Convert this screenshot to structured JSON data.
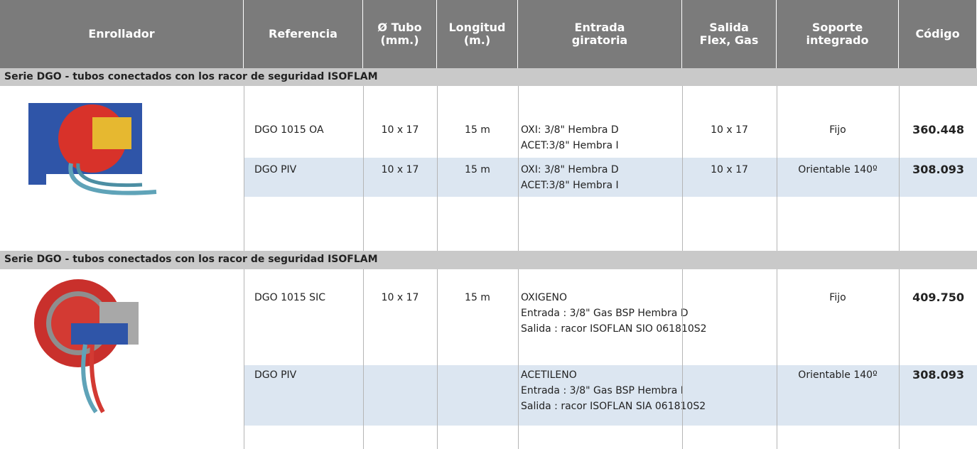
{
  "header": [
    [
      "Enrollador"
    ],
    [
      "Referencia"
    ],
    [
      "Ø Tubo",
      "(mm.)"
    ],
    [
      "Longitud",
      "(m.)"
    ],
    [
      "Entrada",
      "giratoria"
    ],
    [
      "Salida",
      "Flex, Gas"
    ],
    [
      "Soporte",
      "integrado"
    ],
    [
      "Código"
    ]
  ],
  "sections": [
    {
      "title": "Serie DGO - tubos conectados con los racor de seguridad ISOFLAM",
      "rows": [
        {
          "referencia": "DGO 1015 OA",
          "tubo": "10 x 17",
          "longitud": "15 m",
          "entrada": [
            "OXI: 3/8\" Hembra D",
            "ACET:3/8\" Hembra I"
          ],
          "salida": "10 x 17",
          "soporte": "Fijo",
          "codigo": "360.448"
        },
        {
          "referencia": "DGO PIV",
          "tubo": "10 x 17",
          "longitud": "15 m",
          "entrada": [
            "OXI: 3/8\" Hembra D",
            "ACET:3/8\" Hembra I"
          ],
          "salida": "10 x 17",
          "soporte": "Orientable 140º",
          "codigo": "308.093"
        }
      ]
    },
    {
      "title": "Serie DGO - tubos conectados con los racor de seguridad ISOFLAM",
      "rows": [
        {
          "referencia": "DGO 1015 SIC",
          "tubo": "10 x 17",
          "longitud": "15 m",
          "entrada": [
            "OXIGENO",
            "Entrada : 3/8\" Gas BSP Hembra D",
            "Salida : racor ISOFLAN SIO 061810S2"
          ],
          "soporte": "Fijo",
          "codigo": "409.750"
        },
        {
          "referencia": "DGO PIV",
          "entrada": [
            "ACETILENO",
            "Entrada : 3/8\" Gas BSP Hembra I",
            "Salida : racor ISOFLAN SIA 061810S2"
          ],
          "soporte": "Orientable 140º",
          "codigo": "308.093"
        }
      ]
    }
  ]
}
